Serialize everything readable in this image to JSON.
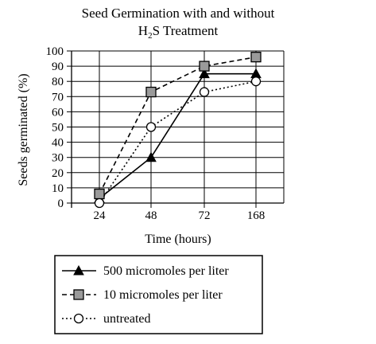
{
  "chart_data": {
    "type": "line",
    "title_line1": "Seed Germination with and without",
    "title_line2_main": "H",
    "title_line2_sub": "2",
    "title_line2_rest": "S Treatment",
    "xlabel": "Time (hours)",
    "ylabel": "Seeds germinated (%)",
    "categories": [
      "24",
      "48",
      "72",
      "168"
    ],
    "y_ticks": [
      "0",
      "10",
      "20",
      "30",
      "40",
      "50",
      "60",
      "70",
      "80",
      "90",
      "100"
    ],
    "ylim": [
      0,
      100
    ],
    "grid": true,
    "legend_position": "bottom",
    "series": [
      {
        "name": "500 micromoles per liter",
        "values": [
          3,
          30,
          85,
          85
        ],
        "marker": "triangle",
        "marker_fill": "#000000",
        "line": "solid"
      },
      {
        "name": "10 micromoles per liter",
        "values": [
          6,
          73,
          90,
          96
        ],
        "marker": "square",
        "marker_fill": "#9a9a9a",
        "line": "dashed"
      },
      {
        "name": "untreated",
        "values": [
          0,
          50,
          73,
          80
        ],
        "marker": "circle",
        "marker_fill": "#ffffff",
        "line": "dotted"
      }
    ]
  }
}
